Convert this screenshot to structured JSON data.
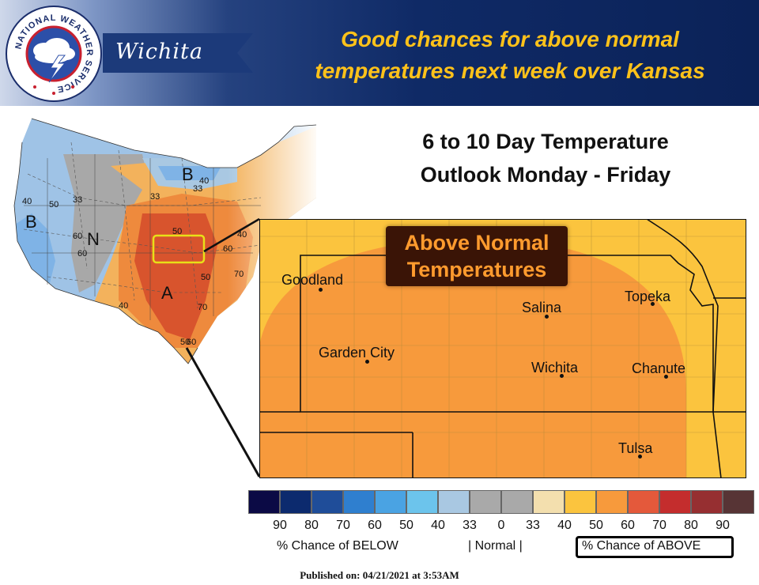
{
  "header": {
    "office": "Wichita",
    "headline_line1": "Good chances for above normal",
    "headline_line2": "temperatures next week over Kansas",
    "logo_text": "NATIONAL WEATHER SERVICE",
    "colors": {
      "headline": "#ffc21a",
      "bar": "#0f2a66"
    }
  },
  "outlook": {
    "title_line1": "6 to 10 Day Temperature",
    "title_line2": "Outlook Monday - Friday"
  },
  "us_map": {
    "contour_labels": [
      "40",
      "50",
      "33",
      "60",
      "33",
      "40",
      "33",
      "50",
      "60",
      "40",
      "70",
      "50",
      "50",
      "60",
      "60",
      "70",
      "40"
    ],
    "category_letters": [
      "B",
      "N",
      "B",
      "A"
    ]
  },
  "kansas_map": {
    "callout_line1": "Above Normal",
    "callout_line2": "Temperatures",
    "cities": [
      "Goodland",
      "Salina",
      "Topeka",
      "Garden City",
      "Wichita",
      "Chanute",
      "Tulsa"
    ]
  },
  "legend": {
    "colors": [
      "#0b0a45",
      "#0c2a6e",
      "#1f4d99",
      "#2f7fcf",
      "#4aa3e3",
      "#6cc4ec",
      "#a9c8e2",
      "#a9a9a9",
      "#a9a9a9",
      "#f3dfae",
      "#fbc43e",
      "#f79a3c",
      "#e4593b",
      "#c42d2d",
      "#962f31",
      "#573435"
    ],
    "ticks": [
      "90",
      "80",
      "70",
      "60",
      "50",
      "40",
      "33",
      "0",
      "33",
      "40",
      "50",
      "60",
      "70",
      "80",
      "90"
    ],
    "below_label": "% Chance of BELOW",
    "normal_label": "| Normal |",
    "above_label": "% Chance of ABOVE"
  },
  "footer": {
    "published": "Published on: 04/21/2021 at 3:53AM"
  }
}
